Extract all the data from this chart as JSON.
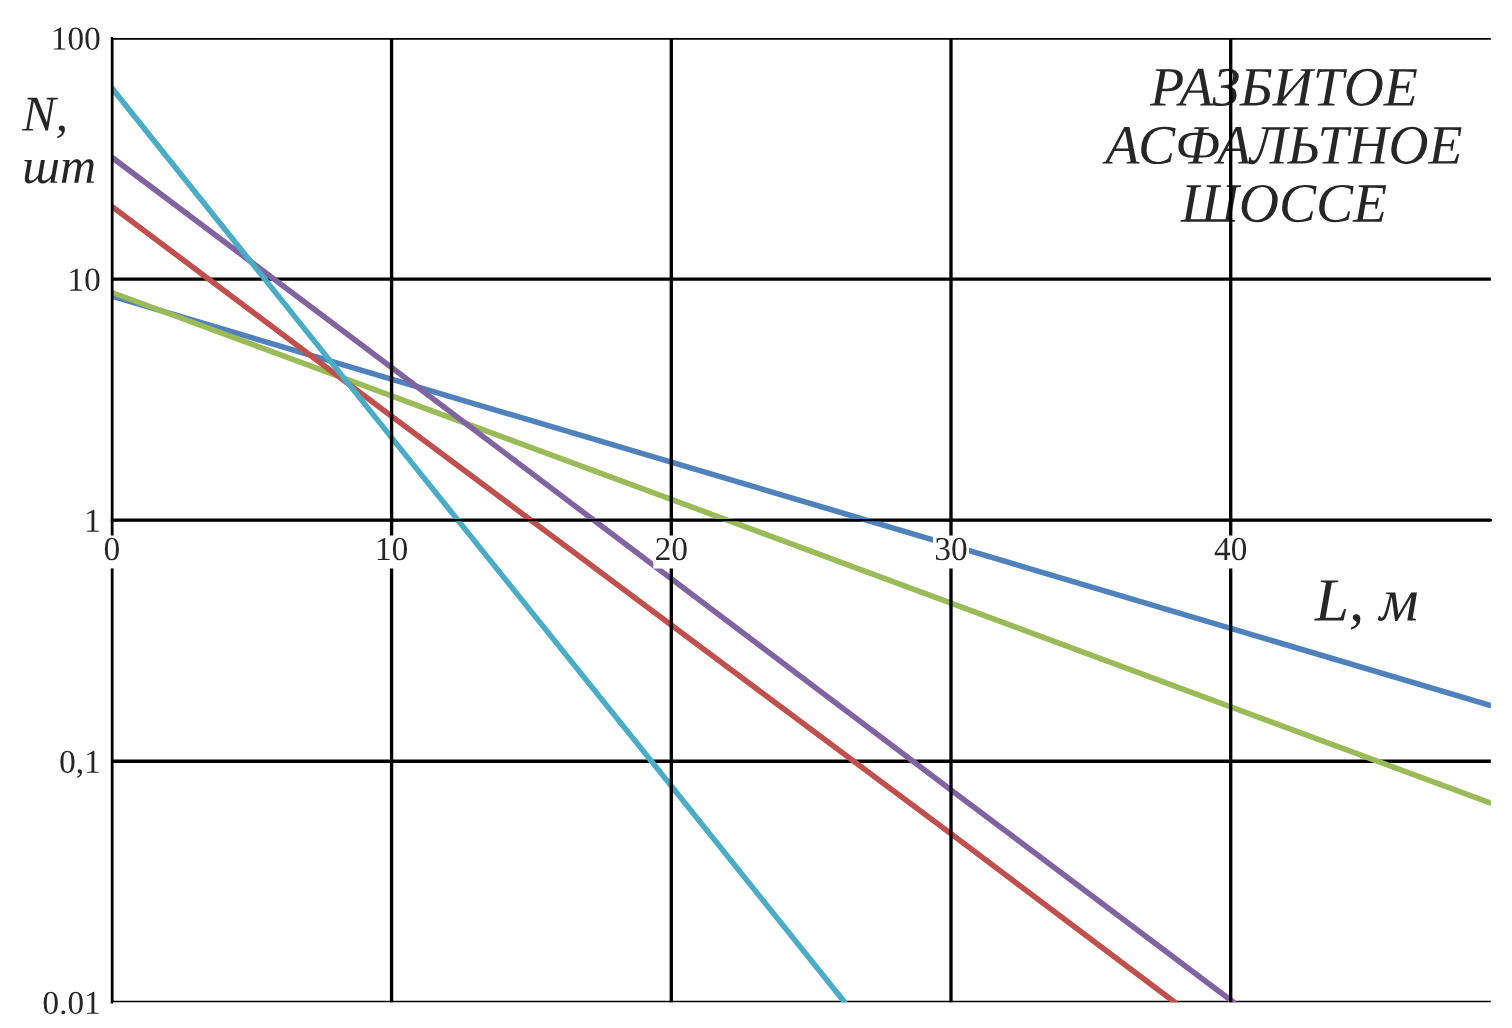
{
  "chart_data": {
    "type": "line",
    "xlabel": "L, м",
    "ylabel": "N,\nшт",
    "annotations": [
      "РАЗБИТОЕ\nАСФАЛЬТНОЕ\nШОССЕ"
    ],
    "series": [
      {
        "color": "#4f81bd",
        "x": [
          0,
          20,
          40,
          49.3
        ],
        "values": [
          8.5,
          1.74,
          0.356,
          0.17
        ]
      },
      {
        "color": "#9bbb59",
        "x": [
          0,
          20,
          40,
          49.3
        ],
        "values": [
          8.8,
          1.22,
          0.168,
          0.067
        ]
      },
      {
        "color": "#8064a2",
        "x": [
          0,
          10,
          30,
          40.1
        ],
        "values": [
          32,
          4.3,
          0.076,
          0.01
        ]
      },
      {
        "color": "#c0504d",
        "x": [
          0,
          10,
          30,
          38.0
        ],
        "values": [
          20,
          2.7,
          0.05,
          0.01
        ]
      },
      {
        "color": "#4bacc6",
        "x": [
          0,
          10,
          20,
          26.2
        ],
        "values": [
          62,
          2.2,
          0.079,
          0.01
        ]
      }
    ],
    "log": "y",
    "xlim": [
      0,
      49.3
    ],
    "ylim": [
      0.01,
      100
    ],
    "xticks": [
      0,
      10,
      20,
      30,
      40
    ],
    "yticks": [
      {
        "value": 0.01,
        "label": "0.01"
      },
      {
        "value": 0.1,
        "label": "0,1"
      },
      1,
      10,
      100
    ],
    "grid": true,
    "legend": false
  }
}
